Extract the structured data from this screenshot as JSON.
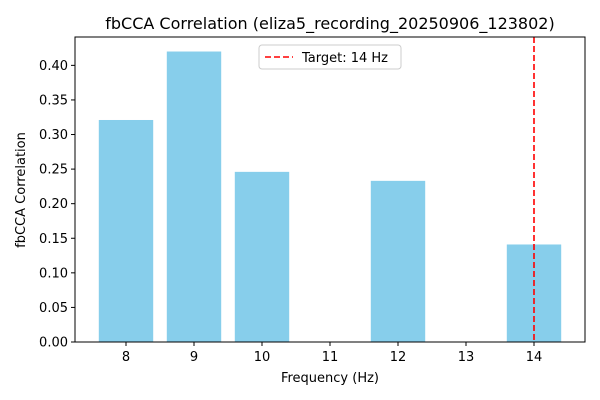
{
  "chart_data": {
    "type": "bar",
    "title": "fbCCA Correlation (eliza5_recording_20250906_123802)",
    "xlabel": "Frequency (Hz)",
    "ylabel": "fbCCA Correlation",
    "x": [
      8,
      9,
      10,
      12,
      14
    ],
    "values": [
      0.321,
      0.42,
      0.246,
      0.233,
      0.141
    ],
    "xlim": [
      7.25,
      14.75
    ],
    "ylim": [
      0,
      0.441
    ],
    "xticks": [
      8,
      9,
      10,
      11,
      12,
      13,
      14
    ],
    "yticks": [
      0.0,
      0.05,
      0.1,
      0.15,
      0.2,
      0.25,
      0.3,
      0.35,
      0.4
    ],
    "ytick_labels": [
      "0.00",
      "0.05",
      "0.10",
      "0.15",
      "0.20",
      "0.25",
      "0.30",
      "0.35",
      "0.40"
    ],
    "bar_color": "#87ceeb",
    "target": {
      "x": 14,
      "label": "Target: 14 Hz",
      "color": "#ff0000",
      "style": "dashed"
    },
    "legend_position": "upper center",
    "grid": false
  }
}
